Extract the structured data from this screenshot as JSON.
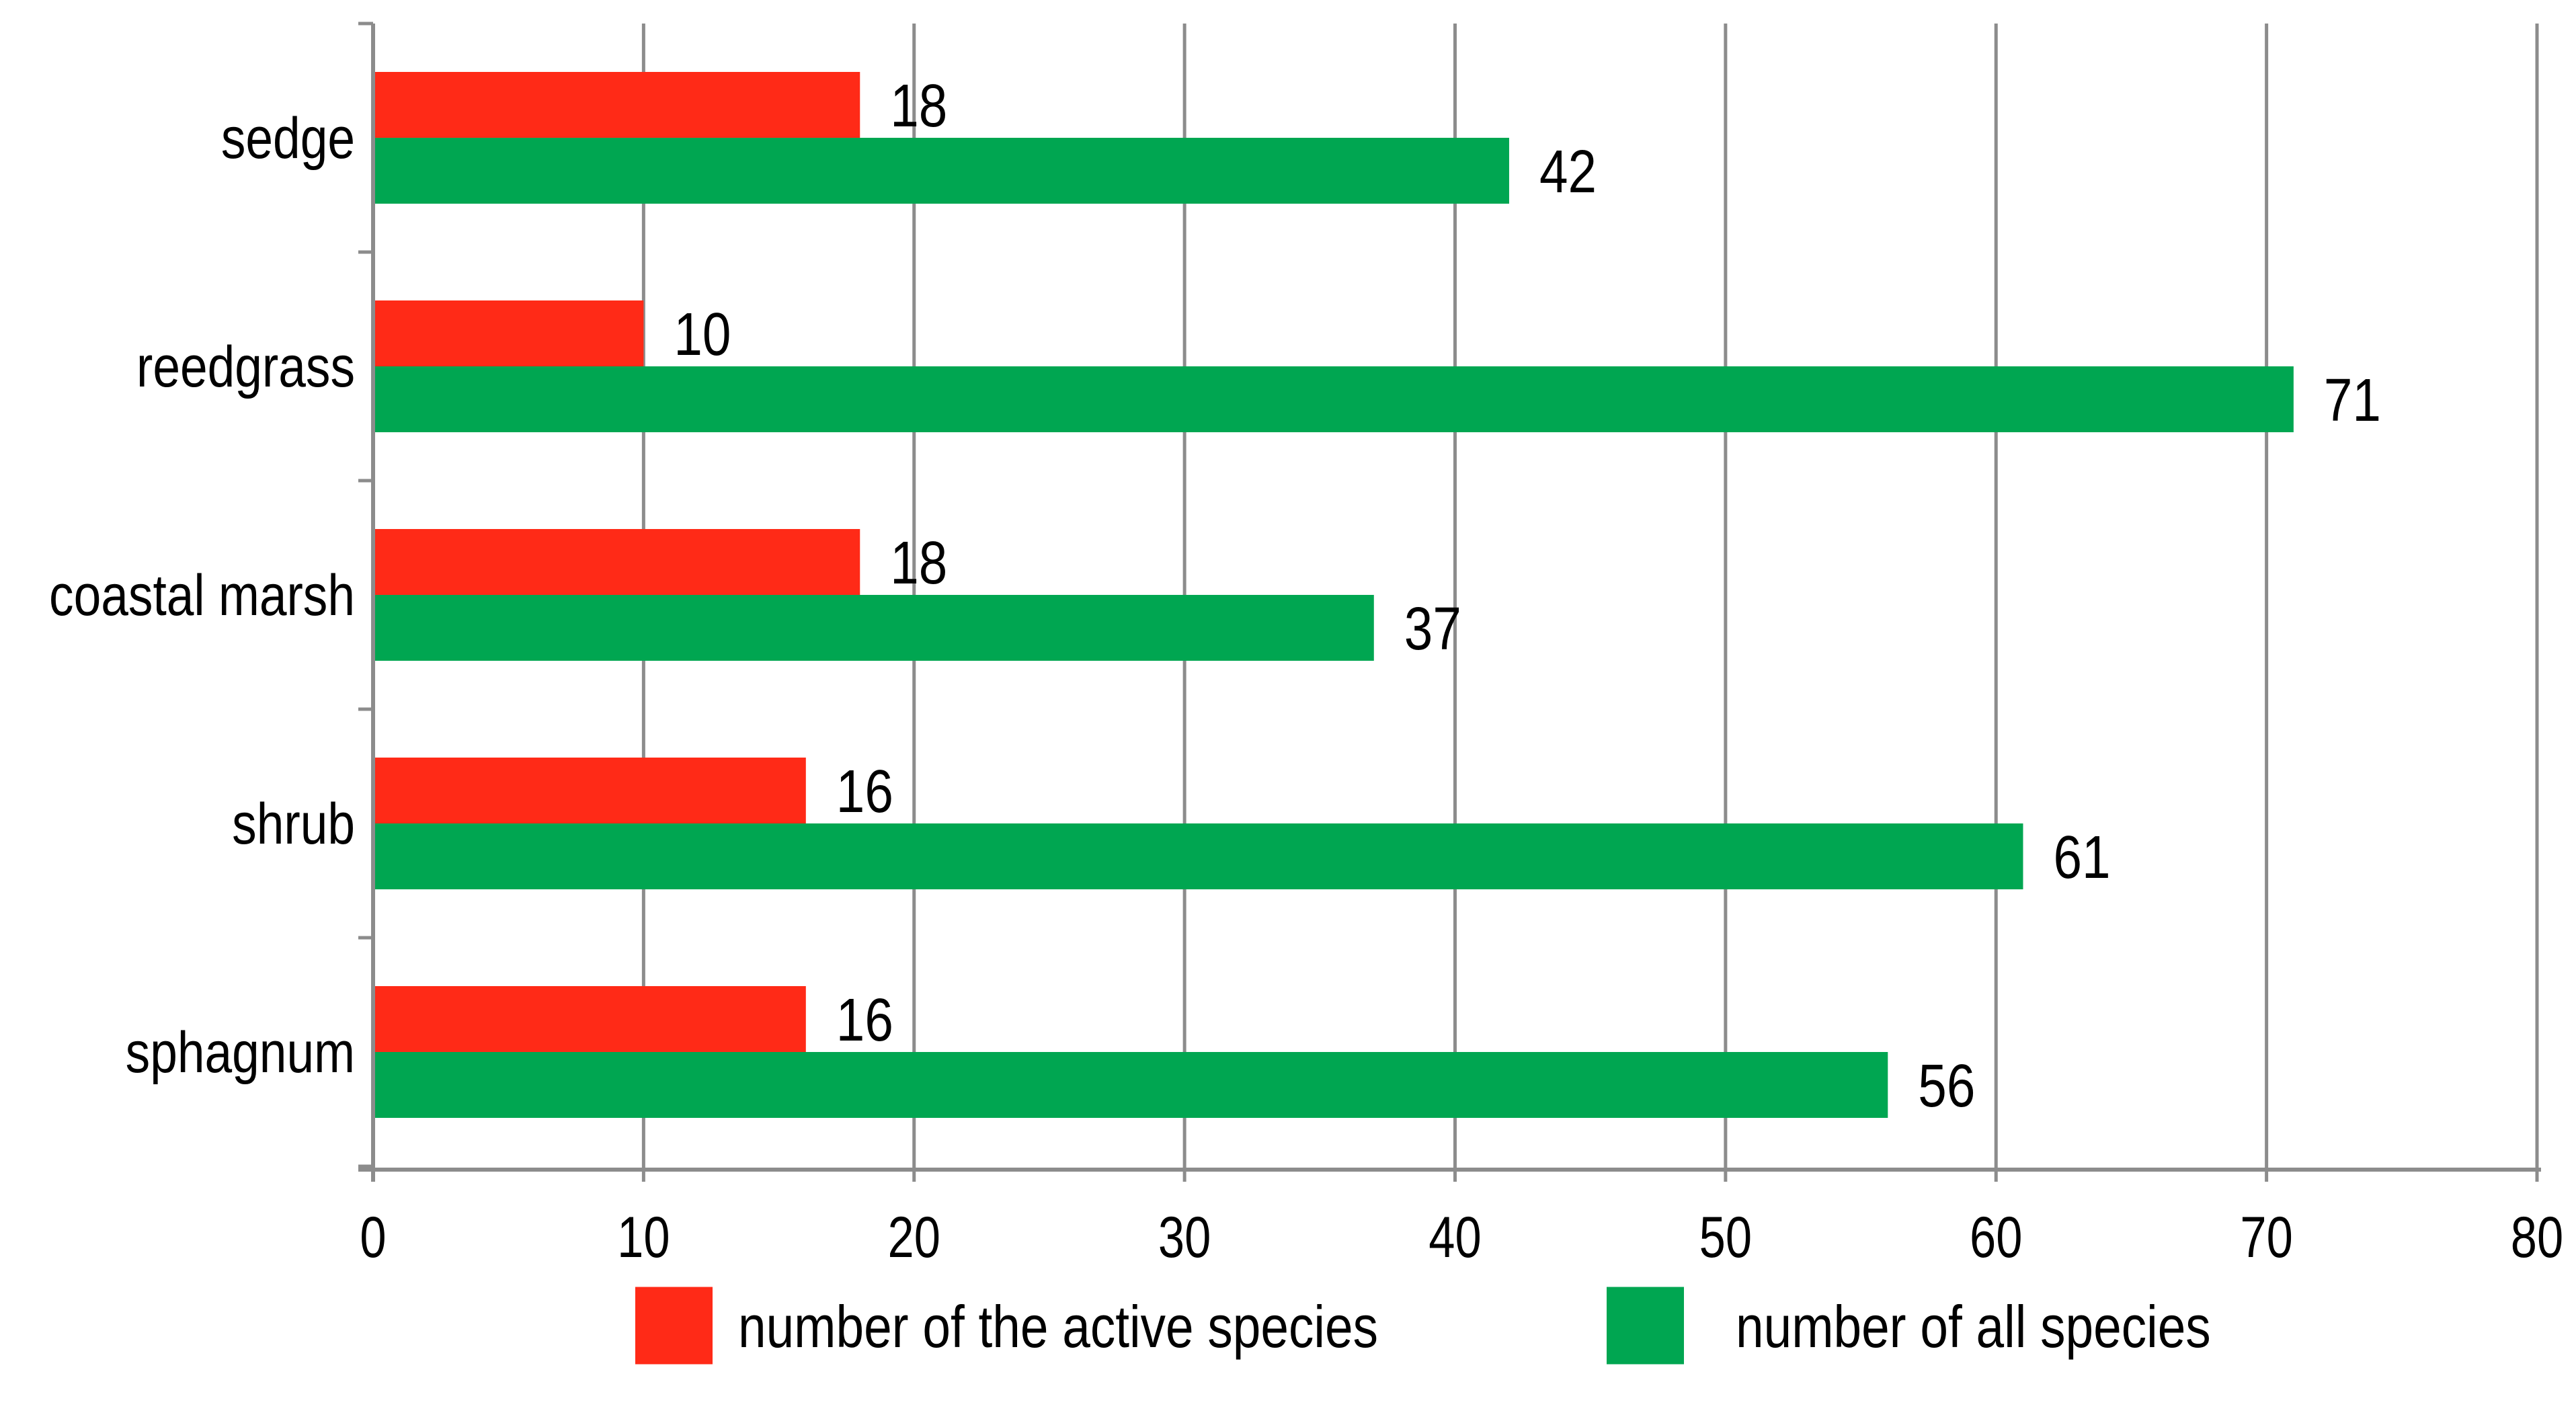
{
  "chart_data": {
    "type": "bar",
    "orientation": "horizontal",
    "categories": [
      "sedge",
      "reedgrass",
      "coastal marsh",
      "shrub",
      "sphagnum"
    ],
    "series": [
      {
        "name": "number of the active species",
        "color": "#ff2a17",
        "values": [
          18,
          10,
          18,
          16,
          16
        ]
      },
      {
        "name": "number of all species",
        "color": "#00a651",
        "values": [
          42,
          71,
          37,
          61,
          56
        ]
      }
    ],
    "xlim": [
      0,
      80
    ],
    "x_ticks": [
      "0",
      "10",
      "20",
      "30",
      "40",
      "50",
      "60",
      "70",
      "80"
    ],
    "grid": true,
    "data_labels": true,
    "legend_position": "bottom"
  }
}
